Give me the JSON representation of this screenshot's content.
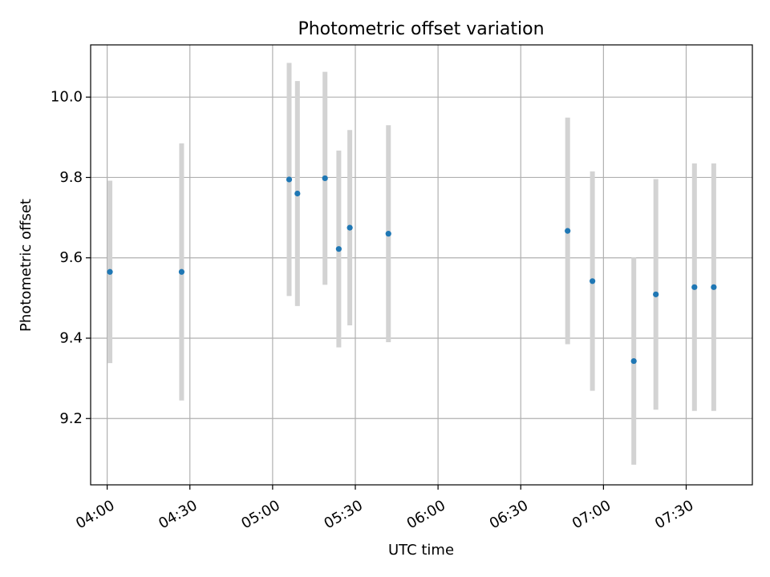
{
  "chart_data": {
    "type": "scatter",
    "title": "Photometric offset variation",
    "xlabel": "UTC time",
    "ylabel": "Photometric offset",
    "x_axis_kind": "time",
    "xlim": [
      "03:54",
      "07:54"
    ],
    "ylim": [
      9.035,
      10.13
    ],
    "x_ticks": [
      "04:00",
      "04:30",
      "05:00",
      "05:30",
      "06:00",
      "06:30",
      "07:00",
      "07:30"
    ],
    "y_ticks": [
      9.2,
      9.4,
      9.6,
      9.8,
      10.0
    ],
    "y_tick_labels": [
      "9.2",
      "9.4",
      "9.6",
      "9.8",
      "10.0"
    ],
    "grid": true,
    "legend": "none",
    "colors": {
      "point": "#1f77b4",
      "errorbar": "#d3d3d3",
      "grid": "#b0b0b0",
      "axes": "#000000"
    },
    "series": [
      {
        "points": [
          {
            "x": "04:01",
            "y": 9.565,
            "err": 0.227
          },
          {
            "x": "04:27",
            "y": 9.565,
            "err": 0.32
          },
          {
            "x": "05:06",
            "y": 9.795,
            "err": 0.29
          },
          {
            "x": "05:09",
            "y": 9.76,
            "err": 0.28
          },
          {
            "x": "05:19",
            "y": 9.798,
            "err": 0.265
          },
          {
            "x": "05:24",
            "y": 9.622,
            "err": 0.245
          },
          {
            "x": "05:28",
            "y": 9.675,
            "err": 0.243
          },
          {
            "x": "05:42",
            "y": 9.66,
            "err": 0.27
          },
          {
            "x": "06:47",
            "y": 9.667,
            "err": 0.282
          },
          {
            "x": "06:56",
            "y": 9.542,
            "err": 0.273
          },
          {
            "x": "07:11",
            "y": 9.343,
            "err": 0.258
          },
          {
            "x": "07:19",
            "y": 9.509,
            "err": 0.287
          },
          {
            "x": "07:33",
            "y": 9.527,
            "err": 0.308
          },
          {
            "x": "07:40",
            "y": 9.527,
            "err": 0.308
          }
        ]
      }
    ]
  }
}
